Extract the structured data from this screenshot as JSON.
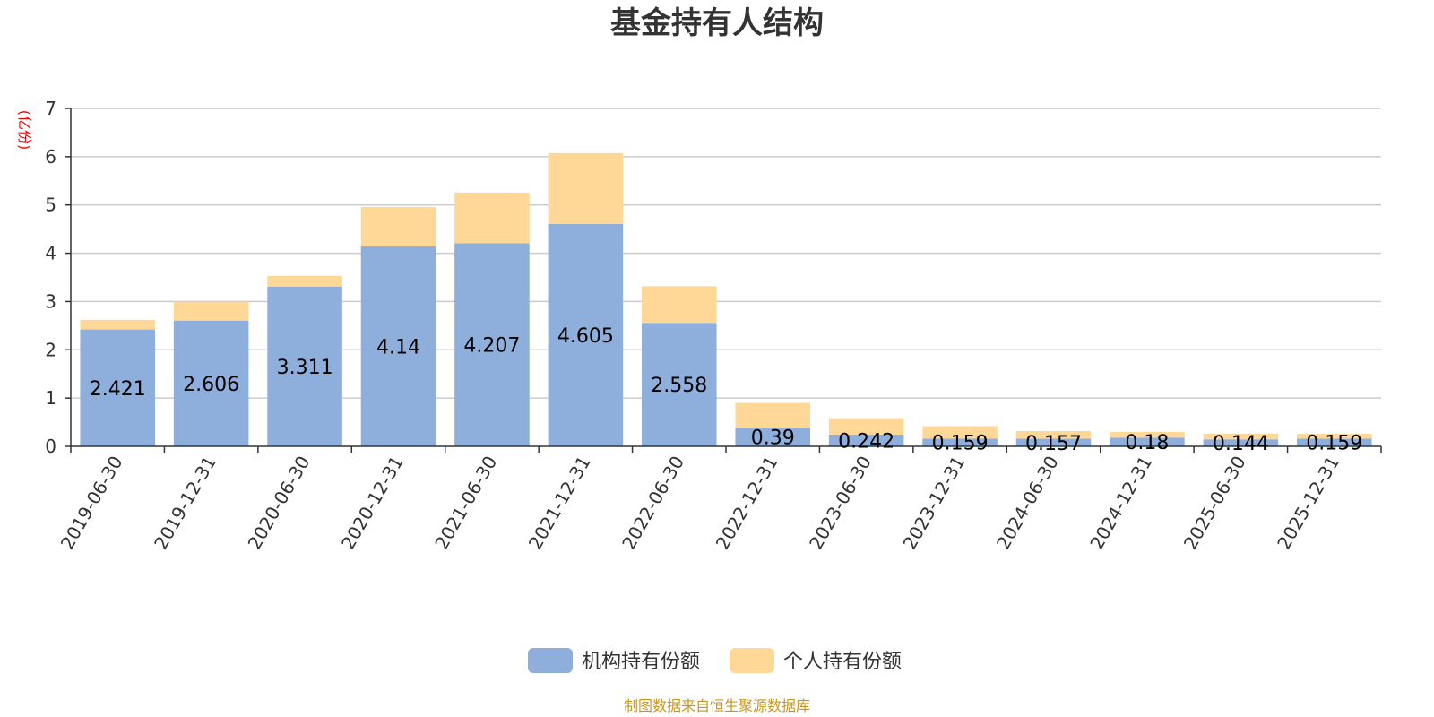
{
  "chart_data": {
    "type": "bar",
    "stacked": true,
    "title": "基金持有人结构",
    "unit_label": "(亿份)",
    "categories": [
      "2019-06-30",
      "2019-12-31",
      "2020-06-30",
      "2020-12-31",
      "2021-06-30",
      "2021-12-31",
      "2022-06-30",
      "2022-12-31",
      "2023-06-30",
      "2023-12-31",
      "2024-06-30",
      "2024-12-31",
      "2025-06-30",
      "2025-12-31"
    ],
    "ylim": [
      0,
      7
    ],
    "yticks": [
      "0",
      "1",
      "2",
      "3",
      "4",
      "5",
      "6",
      "7"
    ],
    "grid": true,
    "legend_position": "bottom",
    "series": [
      {
        "name": "机构持有份额",
        "color": "#8eaedb",
        "values": [
          2.421,
          2.606,
          3.311,
          4.14,
          4.207,
          4.605,
          2.558,
          0.39,
          0.242,
          0.159,
          0.157,
          0.18,
          0.144,
          0.159
        ],
        "labels": [
          "2.421",
          "2.606",
          "3.311",
          "4.14",
          "4.207",
          "4.605",
          "2.558",
          "0.39",
          "0.242",
          "0.159",
          "0.157",
          "0.18",
          "0.144",
          "0.159"
        ]
      },
      {
        "name": "个人持有份额",
        "color": "#ffd898",
        "values": [
          0.2,
          0.39,
          0.22,
          0.82,
          1.05,
          1.47,
          0.76,
          0.51,
          0.34,
          0.26,
          0.16,
          0.12,
          0.12,
          0.1
        ]
      }
    ]
  },
  "source": "制图数据来自恒生聚源数据库"
}
